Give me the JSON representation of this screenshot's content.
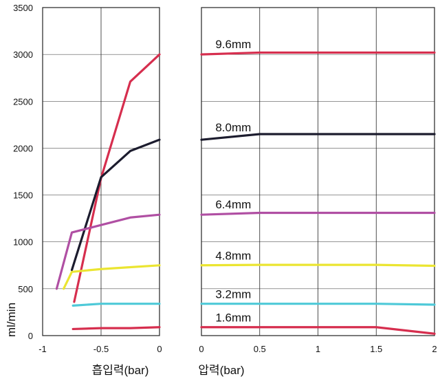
{
  "chart_data": [
    {
      "type": "line",
      "panel": "left",
      "xlabel": "흡입력(bar)",
      "ylabel": "ml/min",
      "xlim": [
        -1,
        0
      ],
      "ylim": [
        0,
        3500
      ],
      "x_ticks": [
        "-1",
        "-0.5",
        "0"
      ],
      "x_tick_values": [
        -1,
        -0.5,
        0
      ],
      "y_ticks": [
        "0",
        "500",
        "1000",
        "1500",
        "2000",
        "2500",
        "3000",
        "3500"
      ],
      "y_tick_values": [
        0,
        500,
        1000,
        1500,
        2000,
        2500,
        3000,
        3500
      ],
      "grid": true,
      "series": [
        {
          "color": "#d62e4e",
          "points": [
            [
              -0.73,
              360
            ],
            [
              -0.5,
              1680
            ],
            [
              -0.25,
              2710
            ],
            [
              0,
              3000
            ]
          ]
        },
        {
          "color": "#1c1c2e",
          "points": [
            [
              -0.75,
              700
            ],
            [
              -0.5,
              1690
            ],
            [
              -0.25,
              1970
            ],
            [
              0,
              2090
            ]
          ]
        },
        {
          "color": "#b04fa3",
          "points": [
            [
              -0.88,
              500
            ],
            [
              -0.75,
              1100
            ],
            [
              -0.5,
              1180
            ],
            [
              -0.25,
              1260
            ],
            [
              0,
              1290
            ]
          ]
        },
        {
          "color": "#ebe531",
          "points": [
            [
              -0.82,
              500
            ],
            [
              -0.75,
              680
            ],
            [
              -0.5,
              710
            ],
            [
              -0.25,
              730
            ],
            [
              0,
              750
            ]
          ]
        },
        {
          "color": "#4ec9d8",
          "points": [
            [
              -0.74,
              320
            ],
            [
              -0.5,
              340
            ],
            [
              -0.25,
              340
            ],
            [
              0,
              340
            ]
          ]
        },
        {
          "color": "#d62e4e",
          "points": [
            [
              -0.74,
              70
            ],
            [
              -0.5,
              80
            ],
            [
              -0.25,
              80
            ],
            [
              0,
              90
            ]
          ]
        }
      ]
    },
    {
      "type": "line",
      "panel": "right",
      "xlabel": "압력(bar)",
      "ylabel": "",
      "xlim": [
        0,
        2
      ],
      "ylim": [
        0,
        3500
      ],
      "x_ticks": [
        "0",
        "0.5",
        "1",
        "1.5",
        "2"
      ],
      "x_tick_values": [
        0,
        0.5,
        1,
        1.5,
        2
      ],
      "grid": true,
      "series": [
        {
          "name": "9.6mm",
          "color": "#d62e4e",
          "points": [
            [
              0,
              3000
            ],
            [
              0.5,
              3020
            ],
            [
              1,
              3020
            ],
            [
              1.5,
              3020
            ],
            [
              2,
              3020
            ]
          ]
        },
        {
          "name": "8.0mm",
          "color": "#1c1c2e",
          "points": [
            [
              0,
              2090
            ],
            [
              0.5,
              2150
            ],
            [
              1,
              2150
            ],
            [
              1.5,
              2150
            ],
            [
              2,
              2150
            ]
          ]
        },
        {
          "name": "6.4mm",
          "color": "#b04fa3",
          "points": [
            [
              0,
              1290
            ],
            [
              0.5,
              1310
            ],
            [
              1,
              1310
            ],
            [
              1.5,
              1310
            ],
            [
              2,
              1310
            ]
          ]
        },
        {
          "name": "4.8mm",
          "color": "#ebe531",
          "points": [
            [
              0,
              750
            ],
            [
              0.5,
              755
            ],
            [
              1,
              755
            ],
            [
              1.5,
              755
            ],
            [
              2,
              745
            ]
          ]
        },
        {
          "name": "3.2mm",
          "color": "#4ec9d8",
          "points": [
            [
              0,
              340
            ],
            [
              0.5,
              340
            ],
            [
              1,
              340
            ],
            [
              1.5,
              340
            ],
            [
              2,
              330
            ]
          ]
        },
        {
          "name": "1.6mm",
          "color": "#d62e4e",
          "points": [
            [
              0,
              90
            ],
            [
              0.5,
              90
            ],
            [
              1,
              90
            ],
            [
              1.5,
              90
            ],
            [
              2,
              20
            ]
          ]
        }
      ]
    }
  ]
}
